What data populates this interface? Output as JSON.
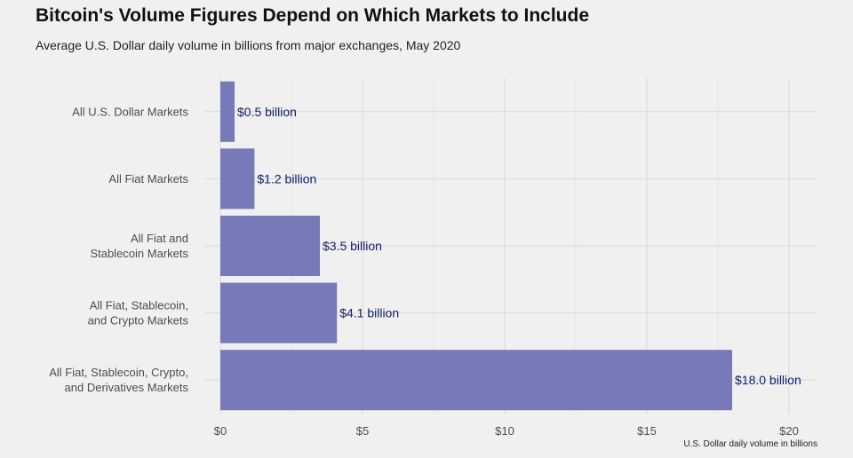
{
  "chart_data": {
    "type": "bar",
    "orientation": "horizontal",
    "title": "Bitcoin's Volume Figures Depend on Which Markets to Include",
    "subtitle": "Average U.S. Dollar daily volume in billions from major exchanges, May 2020",
    "categories": [
      [
        "All U.S. Dollar Markets"
      ],
      [
        "All Fiat Markets"
      ],
      [
        "All Fiat and",
        "Stablecoin Markets"
      ],
      [
        "All Fiat, Stablecoin,",
        "and Crypto Markets"
      ],
      [
        "All Fiat, Stablecoin, Crypto,",
        "and Derivatives Markets"
      ]
    ],
    "values": [
      0.5,
      1.2,
      3.5,
      4.1,
      18.0
    ],
    "data_labels": [
      "$0.5 billion",
      "$1.2 billion",
      "$3.5 billion",
      "$4.1 billion",
      "$18.0 billion"
    ],
    "xticks": [
      0,
      5,
      10,
      15,
      20
    ],
    "xtick_labels": [
      "$0",
      "$5",
      "$10",
      "$15",
      "$20"
    ],
    "xlim": [
      0,
      21
    ],
    "xlabel": "U.S. Dollar daily volume in billions",
    "ylabel": "",
    "grid": true,
    "bar_color": "#7779b9",
    "label_color": "#10206b",
    "background": "#f0f0f0"
  }
}
